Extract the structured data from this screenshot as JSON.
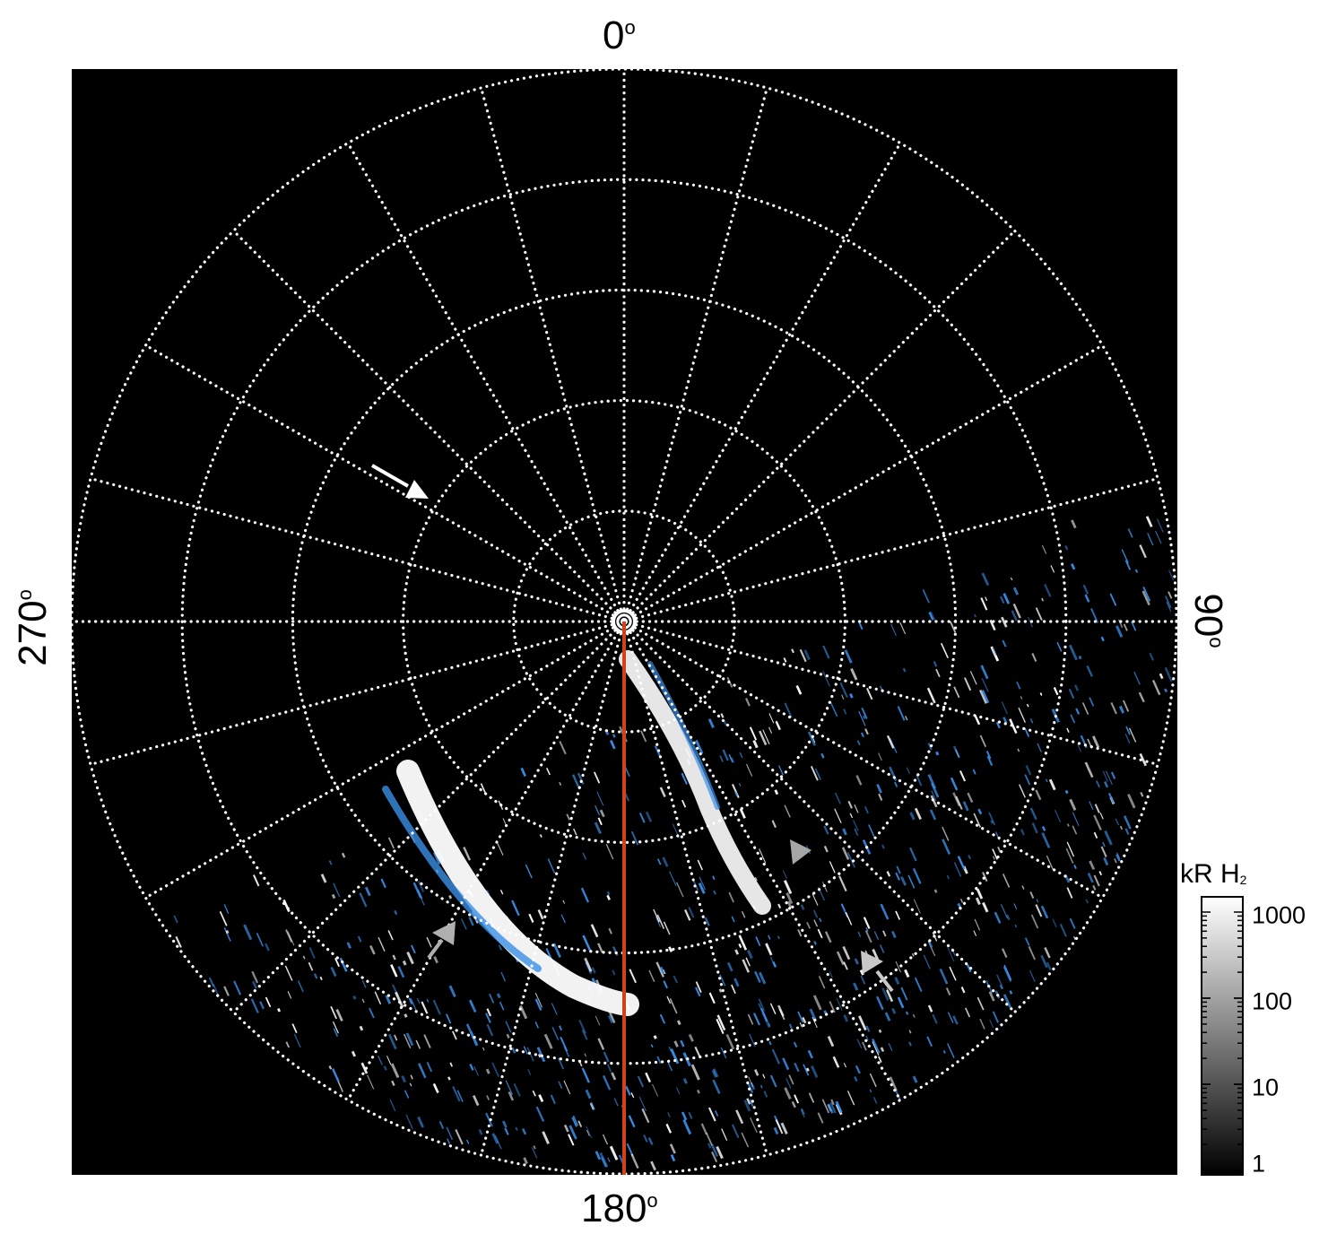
{
  "figure": {
    "longitude_labels": {
      "top": "0",
      "right": "90",
      "bottom": "180",
      "left": "270",
      "degree_symbol": "o"
    },
    "colorbar": {
      "title": "kR H",
      "title_subscript": "2",
      "scale": "log",
      "ticks": [
        "1000",
        "100",
        "10",
        "1"
      ],
      "colors": [
        "#000000",
        "#ffffff"
      ]
    },
    "grid": {
      "style": "dotted",
      "color": "#ffffff",
      "latitude_circles": 5,
      "meridians": 24
    },
    "overlay": {
      "meridian_line_color": "#d2401c",
      "emission_colors": [
        "#ffffff",
        "#3a8ee6"
      ]
    },
    "annotations": [
      {
        "type": "arrow",
        "color": "#ffffff"
      },
      {
        "type": "arrow",
        "color": "#b0b0b0"
      },
      {
        "type": "arrow",
        "color": "#b0b0b0"
      },
      {
        "type": "arrow",
        "color": "#c8c8c8"
      }
    ]
  }
}
